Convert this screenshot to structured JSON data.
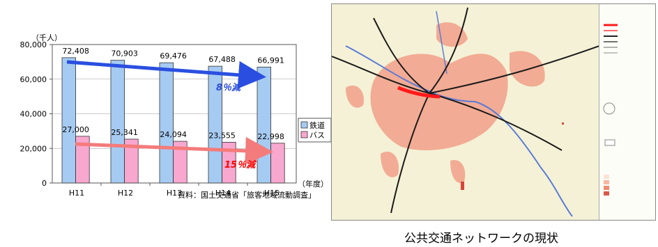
{
  "chart_data": {
    "type": "bar",
    "categories": [
      "H11",
      "H12",
      "H13",
      "H14",
      "H15"
    ],
    "series": [
      {
        "name": "鉄道",
        "values": [
          72408,
          70903,
          69476,
          67488,
          66991
        ],
        "color": "#a6cbf2"
      },
      {
        "name": "バス",
        "values": [
          27000,
          25341,
          24094,
          23555,
          22998
        ],
        "color": "#f8a7cf"
      }
    ],
    "value_labels": {
      "鉄道": [
        "72,408",
        "70,903",
        "69,476",
        "67,488",
        "66,991"
      ],
      "バス": [
        "27,000",
        "25,341",
        "24,094",
        "23,555",
        "22,998"
      ]
    },
    "ylim": [
      0,
      80000
    ],
    "yticks": [
      "0",
      "20,000",
      "40,000",
      "60,000",
      "80,000"
    ],
    "y_unit": "（千人）",
    "x_unit": "（年度）",
    "legend_position": "right",
    "annotations": {
      "rail_trend": "8％減",
      "rail_trend_color": "#2a4fe0",
      "bus_trend": "15％減",
      "bus_trend_color": "#ff0000"
    },
    "source": "資料：国土交通省「旅客地域流動調査」"
  },
  "map": {
    "caption": "公共交通ネットワークの現状",
    "colors": {
      "base": "#f4f1d6",
      "urban": "#f2a48d",
      "rail": "#1a1a1a",
      "bus_main": "#ff1a1a",
      "river": "#5a7bd6"
    }
  }
}
